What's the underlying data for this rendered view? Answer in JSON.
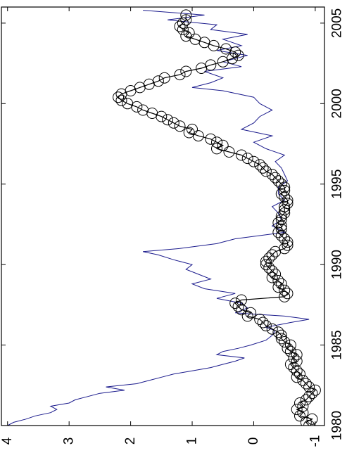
{
  "chart_data": {
    "type": "line",
    "orientation": "rotated-90",
    "title": "",
    "xlabel": "",
    "ylabel": "",
    "grid": false,
    "legend": "none",
    "xlim": [
      1980,
      2006
    ],
    "ylim": [
      -1.15,
      4.1
    ],
    "x_ticks": [
      1980,
      1985,
      1990,
      1995,
      2000,
      2005
    ],
    "x_tick_labels": [
      "1980",
      "1985",
      "1990",
      "1995",
      "2000",
      "2005"
    ],
    "y_ticks": [
      -1,
      0,
      1,
      2,
      3,
      4
    ],
    "y_tick_labels": [
      "-1",
      "0",
      "1",
      "2",
      "3",
      "4"
    ],
    "colors": {
      "blue_series": "#1a1a8c",
      "circle_series": "#000000"
    },
    "series": [
      {
        "style": "line",
        "color": "#1a1a8c",
        "points": [
          [
            1980.0,
            4.0
          ],
          [
            1980.2,
            3.9
          ],
          [
            1980.4,
            3.7
          ],
          [
            1980.6,
            3.55
          ],
          [
            1980.8,
            3.3
          ],
          [
            1981.0,
            3.2
          ],
          [
            1981.2,
            3.3
          ],
          [
            1981.4,
            3.0
          ],
          [
            1981.6,
            2.9
          ],
          [
            1981.8,
            2.7
          ],
          [
            1982.0,
            2.5
          ],
          [
            1982.2,
            2.1
          ],
          [
            1982.4,
            2.4
          ],
          [
            1982.6,
            1.9
          ],
          [
            1982.8,
            1.7
          ],
          [
            1983.0,
            1.5
          ],
          [
            1983.2,
            1.3
          ],
          [
            1983.4,
            1.0
          ],
          [
            1983.6,
            0.7
          ],
          [
            1983.8,
            0.5
          ],
          [
            1984.0,
            0.3
          ],
          [
            1984.2,
            0.15
          ],
          [
            1984.4,
            0.6
          ],
          [
            1984.6,
            0.5
          ],
          [
            1984.8,
            0.25
          ],
          [
            1985.0,
            0.05
          ],
          [
            1985.3,
            -0.2
          ],
          [
            1985.6,
            -0.3
          ],
          [
            1985.9,
            -0.35
          ],
          [
            1986.1,
            -0.2
          ],
          [
            1986.4,
            -0.6
          ],
          [
            1986.6,
            -0.9
          ],
          [
            1986.8,
            -0.5
          ],
          [
            1987.0,
            0.3
          ],
          [
            1987.3,
            0.1
          ],
          [
            1987.6,
            0.2
          ],
          [
            1987.9,
            0.6
          ],
          [
            1988.2,
            0.3
          ],
          [
            1988.5,
            0.8
          ],
          [
            1988.8,
            1.0
          ],
          [
            1989.1,
            0.7
          ],
          [
            1989.4,
            0.9
          ],
          [
            1989.7,
            1.1
          ],
          [
            1990.0,
            1.0
          ],
          [
            1990.3,
            1.3
          ],
          [
            1990.6,
            1.55
          ],
          [
            1990.8,
            1.8
          ],
          [
            1991.0,
            1.2
          ],
          [
            1991.3,
            0.6
          ],
          [
            1991.6,
            0.3
          ],
          [
            1992.0,
            -0.5
          ],
          [
            1992.4,
            -0.3
          ],
          [
            1992.8,
            -0.45
          ],
          [
            1993.2,
            -0.4
          ],
          [
            1993.6,
            -0.3
          ],
          [
            1994.0,
            -0.5
          ],
          [
            1994.4,
            -0.4
          ],
          [
            1994.8,
            -0.4
          ],
          [
            1995.2,
            -0.55
          ],
          [
            1995.6,
            -0.5
          ],
          [
            1996.0,
            -0.45
          ],
          [
            1996.4,
            -0.35
          ],
          [
            1996.8,
            -0.5
          ],
          [
            1997.2,
            -0.2
          ],
          [
            1997.6,
            0.0
          ],
          [
            1998.0,
            -0.3
          ],
          [
            1998.4,
            0.2
          ],
          [
            1998.8,
            0.0
          ],
          [
            1999.2,
            -0.1
          ],
          [
            1999.6,
            -0.3
          ],
          [
            2000.0,
            -0.1
          ],
          [
            2000.4,
            0.0
          ],
          [
            2000.8,
            0.5
          ],
          [
            2001.0,
            1.0
          ],
          [
            2001.3,
            0.7
          ],
          [
            2001.6,
            0.5
          ],
          [
            2002.0,
            0.8
          ],
          [
            2002.3,
            0.2
          ],
          [
            2002.6,
            0.5
          ],
          [
            2003.0,
            0.1
          ],
          [
            2003.3,
            0.6
          ],
          [
            2003.6,
            0.2
          ],
          [
            2004.0,
            0.5
          ],
          [
            2004.3,
            0.1
          ],
          [
            2004.6,
            0.7
          ],
          [
            2004.9,
            0.6
          ],
          [
            2005.2,
            1.4
          ],
          [
            2005.5,
            0.8
          ],
          [
            2005.8,
            1.8
          ]
        ]
      },
      {
        "style": "line-circle-markers",
        "color": "#000000",
        "points": [
          [
            1980.0,
            -0.9
          ],
          [
            1980.2,
            -0.85
          ],
          [
            1980.4,
            -0.95
          ],
          [
            1980.6,
            -0.75
          ],
          [
            1980.8,
            -0.8
          ],
          [
            1981.0,
            -0.7
          ],
          [
            1981.2,
            -0.8
          ],
          [
            1981.4,
            -0.75
          ],
          [
            1981.6,
            -0.85
          ],
          [
            1981.8,
            -0.9
          ],
          [
            1982.0,
            -0.95
          ],
          [
            1982.2,
            -1.0
          ],
          [
            1982.4,
            -0.9
          ],
          [
            1982.6,
            -0.85
          ],
          [
            1982.8,
            -0.8
          ],
          [
            1983.0,
            -0.7
          ],
          [
            1983.2,
            -0.75
          ],
          [
            1983.4,
            -0.7
          ],
          [
            1983.6,
            -0.65
          ],
          [
            1983.8,
            -0.6
          ],
          [
            1984.0,
            -0.7
          ],
          [
            1984.2,
            -0.65
          ],
          [
            1984.4,
            -0.7
          ],
          [
            1984.6,
            -0.6
          ],
          [
            1984.8,
            -0.55
          ],
          [
            1985.0,
            -0.6
          ],
          [
            1985.2,
            -0.5
          ],
          [
            1985.4,
            -0.45
          ],
          [
            1985.6,
            -0.45
          ],
          [
            1985.8,
            -0.4
          ],
          [
            1986.0,
            -0.3
          ],
          [
            1986.2,
            -0.2
          ],
          [
            1986.4,
            -0.15
          ],
          [
            1986.6,
            -0.1
          ],
          [
            1986.8,
            0.1
          ],
          [
            1987.0,
            0.05
          ],
          [
            1987.2,
            0.2
          ],
          [
            1987.4,
            0.25
          ],
          [
            1987.6,
            0.3
          ],
          [
            1987.8,
            0.2
          ],
          [
            1988.0,
            -0.5
          ],
          [
            1988.2,
            -0.55
          ],
          [
            1988.4,
            -0.5
          ],
          [
            1988.6,
            -0.4
          ],
          [
            1988.8,
            -0.45
          ],
          [
            1989.0,
            -0.4
          ],
          [
            1989.2,
            -0.3
          ],
          [
            1989.4,
            -0.35
          ],
          [
            1989.6,
            -0.3
          ],
          [
            1989.8,
            -0.25
          ],
          [
            1990.0,
            -0.2
          ],
          [
            1990.2,
            -0.2
          ],
          [
            1990.4,
            -0.25
          ],
          [
            1990.6,
            -0.3
          ],
          [
            1990.8,
            -0.35
          ],
          [
            1991.0,
            -0.5
          ],
          [
            1991.2,
            -0.55
          ],
          [
            1991.4,
            -0.55
          ],
          [
            1991.6,
            -0.5
          ],
          [
            1991.8,
            -0.45
          ],
          [
            1992.0,
            -0.4
          ],
          [
            1992.2,
            -0.45
          ],
          [
            1992.4,
            -0.45
          ],
          [
            1992.6,
            -0.4
          ],
          [
            1992.8,
            -0.45
          ],
          [
            1993.0,
            -0.45
          ],
          [
            1993.2,
            -0.5
          ],
          [
            1993.4,
            -0.5
          ],
          [
            1993.6,
            -0.5
          ],
          [
            1993.8,
            -0.55
          ],
          [
            1994.0,
            -0.55
          ],
          [
            1994.2,
            -0.5
          ],
          [
            1994.4,
            -0.45
          ],
          [
            1994.6,
            -0.5
          ],
          [
            1994.8,
            -0.5
          ],
          [
            1995.0,
            -0.45
          ],
          [
            1995.2,
            -0.4
          ],
          [
            1995.4,
            -0.35
          ],
          [
            1995.6,
            -0.3
          ],
          [
            1995.8,
            -0.2
          ],
          [
            1996.0,
            -0.15
          ],
          [
            1996.2,
            -0.1
          ],
          [
            1996.4,
            0.0
          ],
          [
            1996.6,
            0.1
          ],
          [
            1996.8,
            0.2
          ],
          [
            1997.0,
            0.4
          ],
          [
            1997.2,
            0.6
          ],
          [
            1997.4,
            0.5
          ],
          [
            1997.6,
            0.6
          ],
          [
            1997.8,
            0.7
          ],
          [
            1998.0,
            0.9
          ],
          [
            1998.2,
            1.05
          ],
          [
            1998.4,
            1.0
          ],
          [
            1998.6,
            1.2
          ],
          [
            1998.8,
            1.3
          ],
          [
            1999.0,
            1.4
          ],
          [
            1999.2,
            1.5
          ],
          [
            1999.4,
            1.65
          ],
          [
            1999.6,
            1.8
          ],
          [
            1999.8,
            1.9
          ],
          [
            2000.0,
            2.05
          ],
          [
            2000.2,
            2.15
          ],
          [
            2000.4,
            2.2
          ],
          [
            2000.6,
            2.15
          ],
          [
            2000.8,
            2.0
          ],
          [
            2001.0,
            1.85
          ],
          [
            2001.2,
            1.7
          ],
          [
            2001.4,
            1.55
          ],
          [
            2001.6,
            1.45
          ],
          [
            2001.8,
            1.2
          ],
          [
            2002.0,
            1.1
          ],
          [
            2002.2,
            0.85
          ],
          [
            2002.4,
            0.7
          ],
          [
            2002.6,
            0.5
          ],
          [
            2002.8,
            0.35
          ],
          [
            2003.0,
            0.25
          ],
          [
            2003.2,
            0.3
          ],
          [
            2003.4,
            0.45
          ],
          [
            2003.6,
            0.65
          ],
          [
            2003.8,
            0.8
          ],
          [
            2004.0,
            0.95
          ],
          [
            2004.2,
            1.1
          ],
          [
            2004.4,
            1.05
          ],
          [
            2004.6,
            1.15
          ],
          [
            2004.8,
            1.2
          ],
          [
            2005.0,
            1.15
          ],
          [
            2005.2,
            1.1
          ],
          [
            2005.5,
            1.1
          ]
        ]
      }
    ]
  }
}
